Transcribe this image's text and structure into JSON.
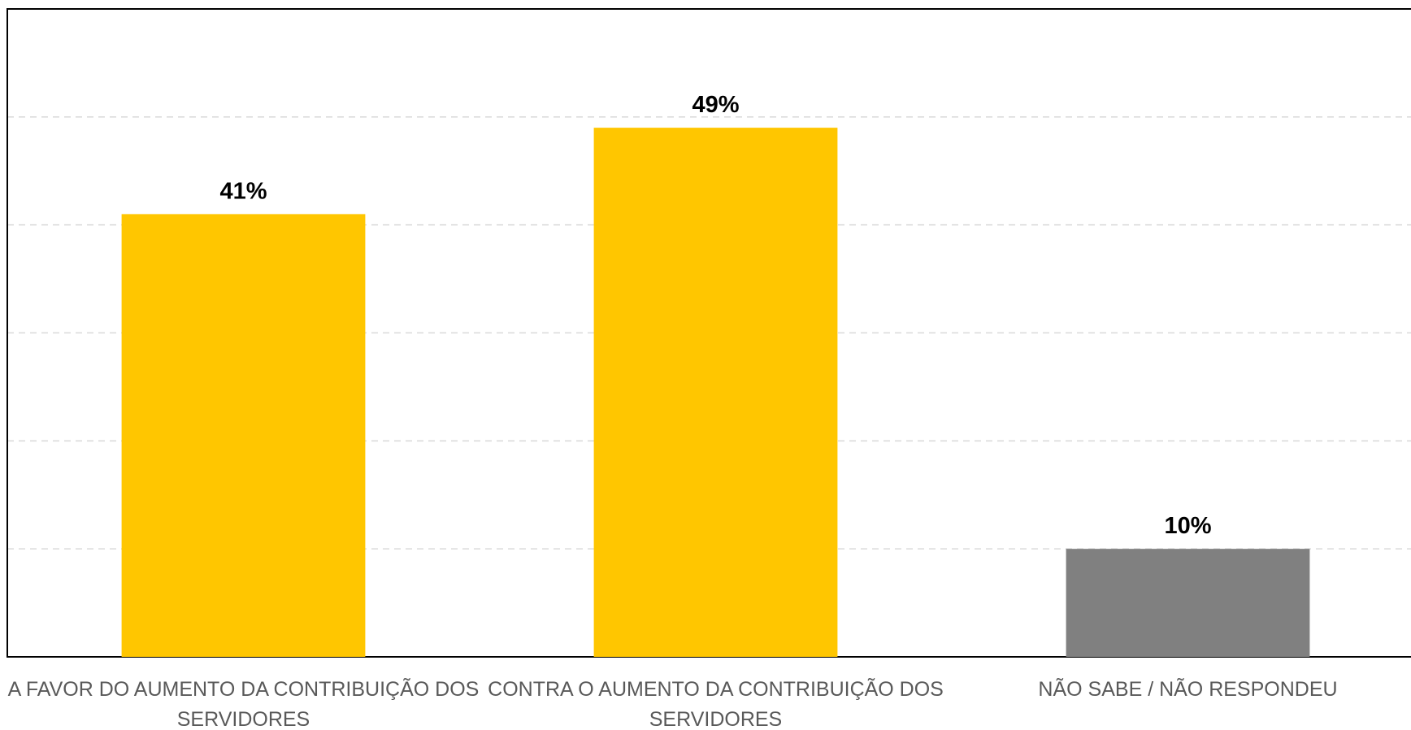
{
  "chart_data": {
    "type": "bar",
    "categories": [
      "A FAVOR DO AUMENTO DA CONTRIBUIÇÃO DOS SERVIDORES",
      "CONTRA O AUMENTO DA CONTRIBUIÇÃO DOS SERVIDORES",
      "NÃO SABE / NÃO RESPONDEU"
    ],
    "values": [
      41,
      49,
      10
    ],
    "value_labels": [
      "41%",
      "49%",
      "10%"
    ],
    "colors": [
      "#ffc600",
      "#ffc600",
      "#808080"
    ],
    "ylim": [
      0,
      60
    ],
    "yticks": [
      10,
      20,
      30,
      40,
      50
    ],
    "grid": true
  }
}
